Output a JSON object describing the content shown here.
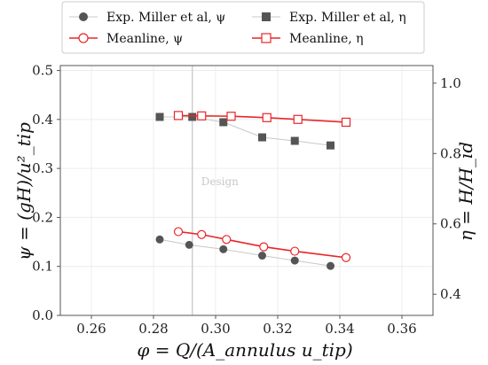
{
  "chart_data": {
    "type": "line",
    "xlabel": "φ = Q/(A_annulus u_tip)",
    "ylabel_left": "ψ = (gH)/u²_tip",
    "ylabel_right": "η = H/H_id",
    "xlim": [
      0.25,
      0.37
    ],
    "ylim_left": [
      0.0,
      0.51
    ],
    "ylim_right": [
      0.34,
      1.05
    ],
    "xticks": [
      "0.26",
      "0.28",
      "0.30",
      "0.32",
      "0.34",
      "0.36"
    ],
    "yticks_left": [
      "0.0",
      "0.1",
      "0.2",
      "0.3",
      "0.4",
      "0.5"
    ],
    "yticks_right": [
      "0.4",
      "0.6",
      "0.8",
      "1.0"
    ],
    "annotation": {
      "text": "Design",
      "x": 0.2925
    },
    "grid": true,
    "legend_position": "top (outside)",
    "series": [
      {
        "name": "Exp. Miller et al, ψ",
        "axis": "left",
        "marker": "circle-filled",
        "color": "#555555",
        "line_color": "#c8c8c8",
        "x": [
          0.282,
          0.2915,
          0.3025,
          0.315,
          0.3255,
          0.337
        ],
        "y": [
          0.155,
          0.144,
          0.135,
          0.122,
          0.112,
          0.101
        ]
      },
      {
        "name": "Exp. Miller et al, η",
        "axis": "right",
        "marker": "square-filled",
        "color": "#555555",
        "line_color": "#c8c8c8",
        "x": [
          0.282,
          0.2925,
          0.3025,
          0.315,
          0.3255,
          0.337
        ],
        "y": [
          0.904,
          0.904,
          0.889,
          0.846,
          0.836,
          0.823
        ]
      },
      {
        "name": "Meanline, ψ",
        "axis": "left",
        "marker": "circle-open",
        "color": "#e8262a",
        "line_color": "#e8262a",
        "x": [
          0.288,
          0.2955,
          0.3035,
          0.3155,
          0.3255,
          0.342
        ],
        "y": [
          0.171,
          0.165,
          0.155,
          0.14,
          0.131,
          0.118
        ]
      },
      {
        "name": "Meanline, η",
        "axis": "right",
        "marker": "square-open",
        "color": "#e8262a",
        "line_color": "#e8262a",
        "x": [
          0.288,
          0.2955,
          0.305,
          0.3165,
          0.3265,
          0.342
        ],
        "y": [
          0.908,
          0.907,
          0.906,
          0.902,
          0.897,
          0.889
        ]
      }
    ]
  }
}
